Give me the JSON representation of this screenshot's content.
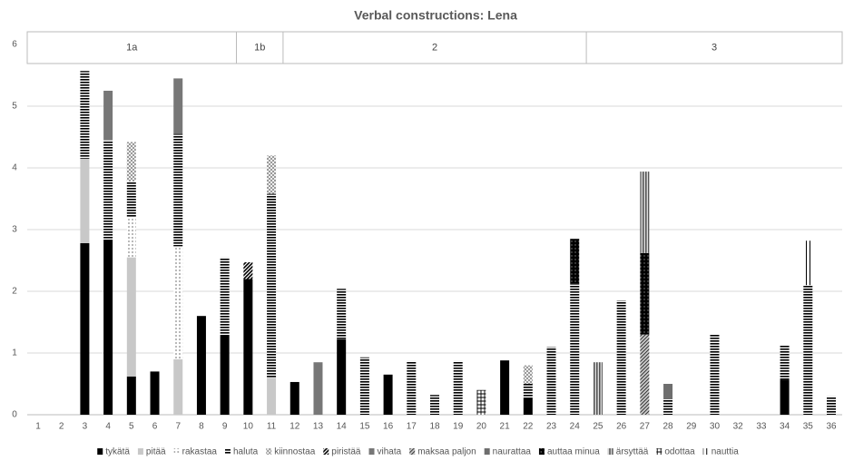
{
  "chart_data": {
    "type": "bar",
    "stacked": true,
    "title": "Verbal constructions: Lena",
    "categories": [
      "1",
      "2",
      "3",
      "4",
      "5",
      "6",
      "7",
      "8",
      "9",
      "10",
      "11",
      "12",
      "13",
      "14",
      "15",
      "16",
      "17",
      "18",
      "19",
      "20",
      "21",
      "22",
      "23",
      "24",
      "25",
      "26",
      "27",
      "28",
      "29",
      "30",
      "32",
      "33",
      "34",
      "35",
      "36"
    ],
    "groups": [
      {
        "label": "1a",
        "start": "1",
        "end": "9"
      },
      {
        "label": "1b",
        "start": "10",
        "end": "11"
      },
      {
        "label": "2",
        "start": "12",
        "end": "24"
      },
      {
        "label": "3",
        "start": "25",
        "end": "36"
      }
    ],
    "ylim": [
      0,
      6
    ],
    "yticks": [
      0,
      1,
      2,
      3,
      4,
      5,
      6
    ],
    "grid": true,
    "legend": "bottom",
    "series": [
      {
        "name": "tykätä",
        "color": "#000000",
        "pattern": "solid",
        "values": [
          null,
          null,
          2.78,
          2.83,
          0.62,
          0.7,
          null,
          1.6,
          1.28,
          2.2,
          null,
          0.53,
          null,
          1.22,
          null,
          0.65,
          null,
          null,
          null,
          null,
          0.88,
          0.27,
          null,
          null,
          null,
          null,
          null,
          null,
          null,
          null,
          null,
          null,
          0.57,
          null,
          null
        ]
      },
      {
        "name": "pitää",
        "color": "#c8c8c8",
        "pattern": "solid",
        "values": [
          null,
          null,
          1.37,
          null,
          1.93,
          null,
          0.9,
          null,
          null,
          null,
          0.6,
          null,
          null,
          null,
          null,
          null,
          null,
          null,
          null,
          null,
          null,
          null,
          null,
          null,
          null,
          null,
          null,
          null,
          null,
          null,
          null,
          null,
          null,
          null,
          null
        ]
      },
      {
        "name": "rakastaa",
        "color": "#888888",
        "pattern": "dots",
        "values": [
          null,
          null,
          null,
          null,
          0.65,
          null,
          1.83,
          null,
          null,
          null,
          null,
          null,
          null,
          null,
          null,
          null,
          null,
          null,
          null,
          null,
          null,
          null,
          null,
          null,
          null,
          null,
          null,
          null,
          null,
          null,
          null,
          null,
          null,
          null,
          null
        ]
      },
      {
        "name": "haluta",
        "color": "#000000",
        "pattern": "hstripe",
        "values": [
          null,
          null,
          1.42,
          1.62,
          0.58,
          null,
          1.82,
          null,
          1.27,
          null,
          2.98,
          null,
          null,
          0.82,
          0.93,
          null,
          0.87,
          0.32,
          0.87,
          null,
          null,
          0.23,
          1.1,
          2.13,
          null,
          1.85,
          null,
          0.25,
          null,
          1.3,
          null,
          null,
          0.55,
          2.1,
          0.3
        ]
      },
      {
        "name": "kiinnostaa",
        "color": "#999999",
        "pattern": "checker",
        "values": [
          null,
          null,
          null,
          null,
          0.64,
          null,
          null,
          null,
          null,
          null,
          0.62,
          null,
          null,
          null,
          null,
          null,
          null,
          null,
          null,
          null,
          null,
          0.3,
          null,
          null,
          null,
          null,
          null,
          null,
          null,
          null,
          null,
          null,
          null,
          null,
          null
        ]
      },
      {
        "name": "piristää",
        "color": "#000000",
        "pattern": "diag",
        "values": [
          null,
          null,
          null,
          null,
          null,
          null,
          null,
          null,
          null,
          0.27,
          null,
          null,
          null,
          null,
          null,
          null,
          null,
          null,
          null,
          null,
          null,
          null,
          null,
          null,
          null,
          null,
          null,
          null,
          null,
          null,
          null,
          null,
          null,
          null,
          null
        ]
      },
      {
        "name": "vihata",
        "color": "#777777",
        "pattern": "solid",
        "values": [
          null,
          null,
          null,
          0.8,
          null,
          null,
          0.9,
          null,
          null,
          null,
          null,
          null,
          0.85,
          null,
          null,
          null,
          null,
          null,
          null,
          null,
          null,
          null,
          null,
          null,
          null,
          null,
          null,
          null,
          null,
          null,
          null,
          null,
          null,
          null,
          null
        ]
      },
      {
        "name": "maksaa paljon",
        "color": "#333333",
        "pattern": "diagthin",
        "values": [
          null,
          null,
          null,
          null,
          null,
          null,
          null,
          null,
          null,
          null,
          null,
          null,
          null,
          null,
          null,
          null,
          null,
          null,
          null,
          null,
          null,
          null,
          null,
          null,
          null,
          null,
          1.3,
          null,
          null,
          null,
          null,
          null,
          null,
          null,
          null
        ]
      },
      {
        "name": "naurattaa",
        "color": "#6e6e6e",
        "pattern": "solid",
        "values": [
          null,
          null,
          null,
          null,
          null,
          null,
          null,
          null,
          null,
          null,
          null,
          null,
          null,
          null,
          null,
          null,
          null,
          null,
          null,
          null,
          null,
          null,
          null,
          null,
          null,
          null,
          null,
          0.25,
          null,
          null,
          null,
          null,
          null,
          null,
          null
        ]
      },
      {
        "name": "auttaa minua",
        "color": "#000000",
        "pattern": "darkdots",
        "values": [
          null,
          null,
          null,
          null,
          null,
          null,
          null,
          null,
          null,
          null,
          null,
          null,
          null,
          null,
          null,
          null,
          null,
          null,
          null,
          null,
          null,
          null,
          null,
          0.72,
          null,
          null,
          1.32,
          null,
          null,
          null,
          null,
          null,
          null,
          null,
          null
        ]
      },
      {
        "name": "ärsyttää",
        "color": "#555555",
        "pattern": "vstripe",
        "values": [
          null,
          null,
          null,
          null,
          null,
          null,
          null,
          null,
          null,
          null,
          null,
          null,
          null,
          null,
          null,
          null,
          null,
          null,
          null,
          null,
          null,
          null,
          null,
          null,
          0.85,
          null,
          1.32,
          null,
          null,
          null,
          null,
          null,
          null,
          null,
          null
        ]
      },
      {
        "name": "odottaa",
        "color": "#000000",
        "pattern": "grid",
        "values": [
          null,
          null,
          null,
          null,
          null,
          null,
          null,
          null,
          null,
          null,
          null,
          null,
          null,
          null,
          null,
          null,
          null,
          null,
          null,
          0.4,
          null,
          null,
          null,
          null,
          null,
          null,
          null,
          null,
          null,
          null,
          null,
          null,
          null,
          null,
          null
        ]
      },
      {
        "name": "nauttia",
        "color": "#000000",
        "pattern": "vthin",
        "values": [
          null,
          null,
          null,
          null,
          null,
          null,
          null,
          null,
          null,
          null,
          null,
          null,
          null,
          null,
          null,
          null,
          null,
          null,
          null,
          null,
          null,
          null,
          null,
          null,
          null,
          null,
          null,
          null,
          null,
          null,
          null,
          null,
          null,
          0.72,
          null
        ]
      }
    ]
  }
}
